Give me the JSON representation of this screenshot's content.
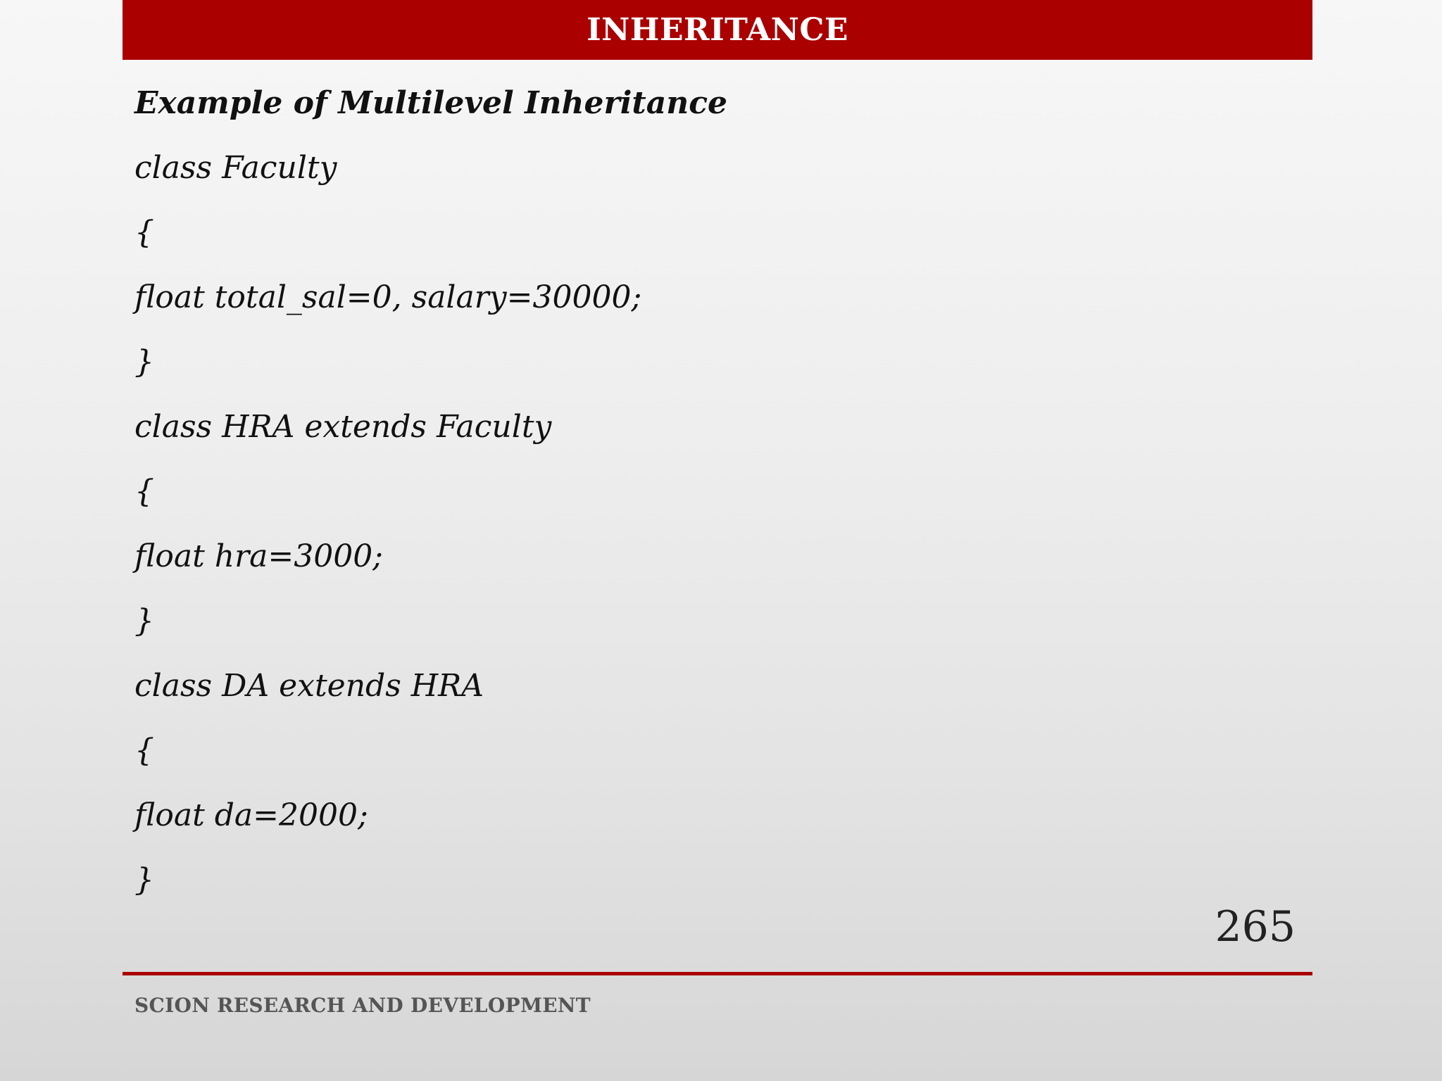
{
  "slide": {
    "title": "INHERITANCE",
    "subtitle": "Example of Multilevel Inheritance",
    "code_lines": [
      "class Faculty",
      "{",
      "float total_sal=0, salary=30000;",
      "}",
      "class HRA extends Faculty",
      "{",
      "float hra=3000;",
      "}",
      "class DA extends HRA",
      "{",
      "float da=2000;",
      "}"
    ],
    "page_number": "265",
    "footer": "SCION RESEARCH AND DEVELOPMENT"
  },
  "colors": {
    "accent": "#aa0000",
    "text": "#111111",
    "footer_text": "#555555"
  }
}
